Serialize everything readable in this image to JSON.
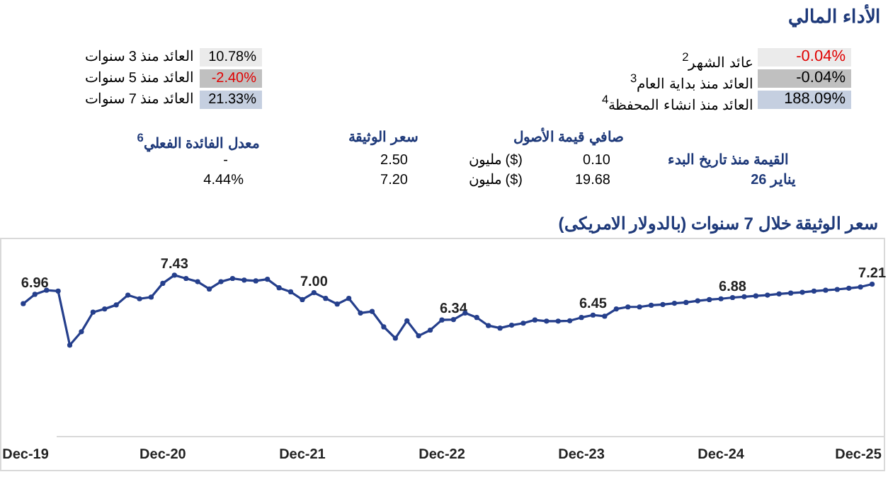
{
  "chart_data": [
    {
      "type": "other",
      "title": "الأداء المالي",
      "annotations": [
        "عائد الشهر$^{2}$",
        "-0.04%",
        "العائد منذ بداية العام$^{3}$",
        "-0.04%",
        "العائد منذ انشاء المحفظة$^{4}$",
        "188.09%",
        "العائد منذ 3 سنوات",
        "10.78%",
        "العائد منذ 5 سنوات",
        "-2.40%",
        "العائد منذ 7 سنوات",
        "21.33%",
        "صافي قيمة الأصول",
        "سعر الوثيقة",
        "معدل الفائدة الفعلي$^{6}$",
        "القيمة منذ تاريخ البدء",
        "0.10",
        "مليون ($)",
        "2.50",
        "-",
        "يناير 26",
        "19.68",
        "مليون ($)",
        "7.20",
        "4.44%"
      ]
    },
    {
      "type": "line",
      "title": "سعر الوثيقة خلال 7 سنوات (بالدولار الامريكى)",
      "x": [
        "2019-12",
        "2020-01",
        "2020-02",
        "2020-03",
        "2020-04",
        "2020-05",
        "2020-06",
        "2020-07",
        "2020-08",
        "2020-09",
        "2020-10",
        "2020-11",
        "2020-12",
        "2021-01",
        "2021-02",
        "2021-03",
        "2021-04",
        "2021-05",
        "2021-06",
        "2021-07",
        "2021-08",
        "2021-09",
        "2021-10",
        "2021-11",
        "2021-12",
        "2022-01",
        "2022-02",
        "2022-03",
        "2022-04",
        "2022-05",
        "2022-06",
        "2022-07",
        "2022-08",
        "2022-09",
        "2022-10",
        "2022-11",
        "2022-12",
        "2023-01",
        "2023-02",
        "2023-03",
        "2023-04",
        "2023-05",
        "2023-06",
        "2023-07",
        "2023-08",
        "2023-09",
        "2023-10",
        "2023-11",
        "2023-12",
        "2024-01",
        "2024-02",
        "2024-03",
        "2024-04",
        "2024-05",
        "2024-06",
        "2024-07",
        "2024-08",
        "2024-09",
        "2024-10",
        "2024-11",
        "2024-12",
        "2025-01",
        "2025-02",
        "2025-03",
        "2025-04",
        "2025-05",
        "2025-06",
        "2025-07",
        "2025-08",
        "2025-09",
        "2025-10",
        "2025-11",
        "2025-12",
        "2026-01"
      ],
      "series": [
        {
          "color": "#253f8c",
          "values": [
            6.73,
            6.96,
            7.06,
            7.04,
            5.71,
            6.04,
            6.52,
            6.6,
            6.7,
            6.94,
            6.85,
            6.89,
            7.23,
            7.43,
            7.35,
            7.27,
            7.09,
            7.27,
            7.35,
            7.31,
            7.29,
            7.33,
            7.12,
            7.02,
            6.83,
            7.0,
            6.86,
            6.72,
            6.86,
            6.5,
            6.54,
            6.16,
            5.88,
            6.31,
            5.94,
            6.08,
            6.33,
            6.34,
            6.5,
            6.39,
            6.19,
            6.13,
            6.2,
            6.25,
            6.33,
            6.3,
            6.3,
            6.31,
            6.39,
            6.45,
            6.42,
            6.6,
            6.65,
            6.65,
            6.69,
            6.71,
            6.74,
            6.76,
            6.8,
            6.83,
            6.85,
            6.88,
            6.9,
            6.92,
            6.94,
            6.97,
            6.99,
            7.01,
            7.04,
            7.06,
            7.08,
            7.11,
            7.14,
            7.21
          ],
          "value_labels": [
            null,
            "6.96",
            null,
            null,
            null,
            null,
            null,
            null,
            null,
            null,
            null,
            null,
            null,
            "7.43",
            null,
            null,
            null,
            null,
            null,
            null,
            null,
            null,
            null,
            null,
            null,
            "7.00",
            null,
            null,
            null,
            null,
            null,
            null,
            null,
            null,
            null,
            null,
            null,
            "6.34",
            null,
            null,
            null,
            null,
            null,
            null,
            null,
            null,
            null,
            null,
            null,
            "6.45",
            null,
            null,
            null,
            null,
            null,
            null,
            null,
            null,
            null,
            null,
            null,
            "6.88",
            null,
            null,
            null,
            null,
            null,
            null,
            null,
            null,
            null,
            null,
            null,
            "7.21"
          ]
        }
      ],
      "xlim": [
        "2019-10",
        "2026-02"
      ],
      "ylim": [
        3.48,
        8.35
      ],
      "xticks": [
        {
          "value": "2019-12",
          "label": "Dec-19"
        },
        {
          "value": "2020-12",
          "label": "Dec-20"
        },
        {
          "value": "2021-12",
          "label": "Dec-21"
        },
        {
          "value": "2022-12",
          "label": "Dec-22"
        },
        {
          "value": "2023-12",
          "label": "Dec-23"
        },
        {
          "value": "2024-12",
          "label": "Dec-24"
        },
        {
          "value": "2025-12",
          "label": "Dec-25"
        }
      ],
      "tick_labels": "x",
      "marker": "circle",
      "line_style": "solid"
    }
  ]
}
